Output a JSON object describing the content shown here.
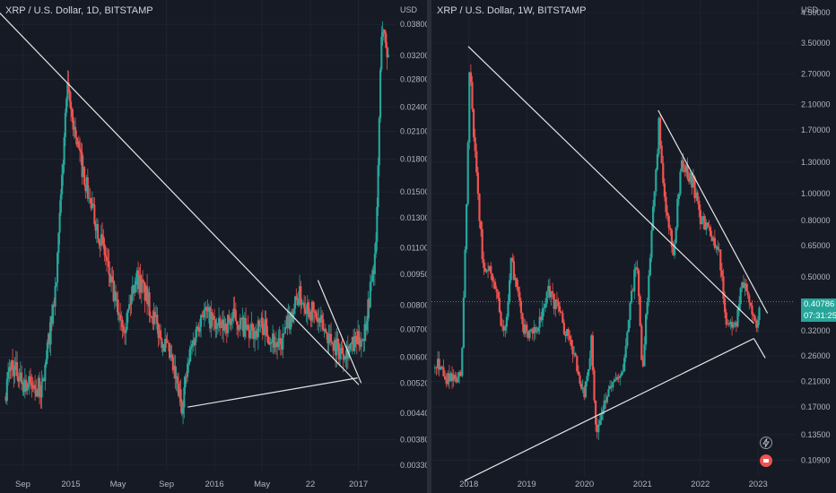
{
  "colors": {
    "background": "#161a25",
    "up": "#26a69a",
    "down": "#ef5350",
    "trendline": "#e6e6e6",
    "text": "#b2b5be"
  },
  "chart_data": [
    {
      "type": "candlestick",
      "title": "XRP / U.S. Dollar, 1D, BITSTAMP",
      "currency_label": "USD",
      "y_scale": "log",
      "ylim": [
        0.0032,
        0.0435
      ],
      "y_ticks": [
        "0.03800",
        "0.03200",
        "0.02800",
        "0.02400",
        "0.02100",
        "0.01800",
        "0.01500",
        "0.01300",
        "0.01100",
        "0.00950",
        "0.00800",
        "0.00700",
        "0.00600",
        "0.00520",
        "0.00440",
        "0.00380",
        "0.00330"
      ],
      "x_ticks": [
        "Sep",
        "2015",
        "May",
        "Sep",
        "2016",
        "May",
        "22",
        "2017"
      ],
      "close_path": [
        [
          "2014-07-20",
          0.005
        ],
        [
          "2014-08-01",
          0.0058
        ],
        [
          "2014-09-05",
          0.0052
        ],
        [
          "2014-10-20",
          0.005
        ],
        [
          "2014-11-25",
          0.009
        ],
        [
          "2014-12-22",
          0.0265
        ],
        [
          "2015-01-20",
          0.019
        ],
        [
          "2015-02-20",
          0.014
        ],
        [
          "2015-03-25",
          0.011
        ],
        [
          "2015-04-25",
          0.008
        ],
        [
          "2015-05-20",
          0.0072
        ],
        [
          "2015-06-15",
          0.0095
        ],
        [
          "2015-07-10",
          0.0085
        ],
        [
          "2015-08-10",
          0.007
        ],
        [
          "2015-09-10",
          0.006
        ],
        [
          "2015-10-10",
          0.0046
        ],
        [
          "2015-11-01",
          0.0062
        ],
        [
          "2015-12-01",
          0.0078
        ],
        [
          "2016-01-15",
          0.007
        ],
        [
          "2016-02-20",
          0.0075
        ],
        [
          "2016-04-01",
          0.0068
        ],
        [
          "2016-05-01",
          0.0072
        ],
        [
          "2016-06-15",
          0.0063
        ],
        [
          "2016-08-01",
          0.0085
        ],
        [
          "2016-09-01",
          0.0078
        ],
        [
          "2016-10-15",
          0.0068
        ],
        [
          "2016-11-15",
          0.0062
        ],
        [
          "2016-12-20",
          0.0064
        ],
        [
          "2017-01-15",
          0.0068
        ],
        [
          "2017-02-15",
          0.011
        ],
        [
          "2017-03-01",
          0.038
        ],
        [
          "2017-03-20",
          0.031
        ]
      ],
      "trendlines": [
        {
          "from": [
            "2014-06-18",
            0.042
          ],
          "to": [
            "2017-01-02",
            0.00515
          ]
        },
        {
          "from": [
            "2015-10-25",
            0.00455
          ],
          "to": [
            "2016-12-30",
            0.00535
          ]
        },
        {
          "from": [
            "2016-09-20",
            0.0092
          ],
          "to": [
            "2017-01-08",
            0.0052
          ]
        }
      ]
    },
    {
      "type": "candlestick",
      "title": "XRP / U.S. Dollar, 1W, BITSTAMP",
      "currency_label": "USD",
      "y_scale": "log",
      "ylim": [
        0.095,
        5.0
      ],
      "y_ticks": [
        "4.50000",
        "3.50000",
        "2.70000",
        "2.10000",
        "1.70000",
        "1.30000",
        "1.00000",
        "0.80000",
        "0.65000",
        "0.50000",
        "0.40000",
        "0.32000",
        "0.26000",
        "0.21000",
        "0.17000",
        "0.13500",
        "0.10900"
      ],
      "x_ticks": [
        "2018",
        "2019",
        "2020",
        "2021",
        "2022",
        "2023"
      ],
      "last_price": "0.40786",
      "countdown": "07:31:25",
      "close_path": [
        [
          "2017-06-01",
          0.25
        ],
        [
          "2017-09-01",
          0.21
        ],
        [
          "2017-11-15",
          0.23
        ],
        [
          "2017-12-20",
          1.0
        ],
        [
          "2018-01-05",
          2.9
        ],
        [
          "2018-02-15",
          1.2
        ],
        [
          "2018-04-01",
          0.55
        ],
        [
          "2018-06-01",
          0.5
        ],
        [
          "2018-08-15",
          0.3
        ],
        [
          "2018-09-25",
          0.58
        ],
        [
          "2018-12-15",
          0.32
        ],
        [
          "2019-03-01",
          0.31
        ],
        [
          "2019-05-15",
          0.44
        ],
        [
          "2019-07-01",
          0.4
        ],
        [
          "2019-10-01",
          0.29
        ],
        [
          "2020-01-01",
          0.19
        ],
        [
          "2020-02-15",
          0.3
        ],
        [
          "2020-03-16",
          0.13
        ],
        [
          "2020-06-01",
          0.2
        ],
        [
          "2020-09-01",
          0.24
        ],
        [
          "2020-11-25",
          0.6
        ],
        [
          "2020-12-30",
          0.22
        ],
        [
          "2021-02-15",
          0.55
        ],
        [
          "2021-04-15",
          1.8
        ],
        [
          "2021-05-25",
          0.9
        ],
        [
          "2021-07-15",
          0.6
        ],
        [
          "2021-09-01",
          1.3
        ],
        [
          "2021-11-15",
          1.1
        ],
        [
          "2022-01-01",
          0.8
        ],
        [
          "2022-03-01",
          0.75
        ],
        [
          "2022-05-01",
          0.6
        ],
        [
          "2022-06-20",
          0.32
        ],
        [
          "2022-08-15",
          0.34
        ],
        [
          "2022-09-25",
          0.48
        ],
        [
          "2022-11-15",
          0.38
        ],
        [
          "2022-12-20",
          0.34
        ],
        [
          "2023-01-15",
          0.40786
        ]
      ],
      "trendlines": [
        {
          "from": [
            "2017-12-28",
            3.4
          ],
          "to": [
            "2022-12-05",
            0.34
          ]
        },
        {
          "from": [
            "2017-12-05",
            0.092
          ],
          "to": [
            "2022-12-05",
            0.3
          ]
        },
        {
          "from": [
            "2021-04-10",
            2.0
          ],
          "to": [
            "2023-03-01",
            0.37
          ]
        },
        {
          "from": [
            "2022-12-05",
            0.3
          ],
          "to": [
            "2023-02-15",
            0.255
          ]
        }
      ]
    }
  ]
}
